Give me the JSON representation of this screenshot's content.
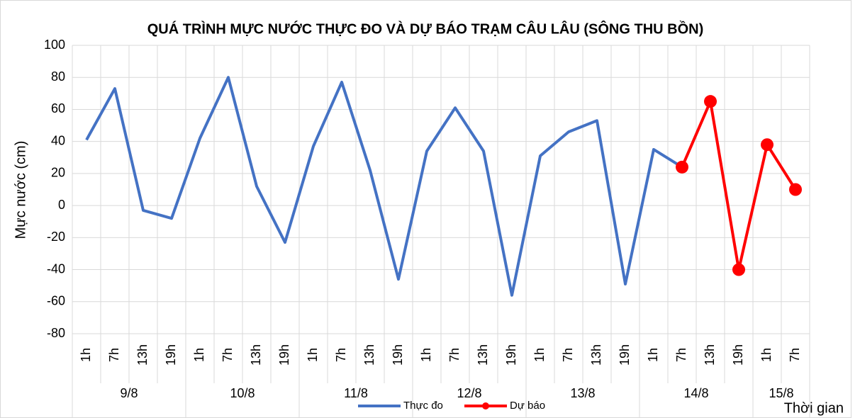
{
  "chart_data": {
    "type": "line",
    "title": "QUÁ TRÌNH MỰC NƯỚC THỰC ĐO VÀ DỰ BÁO TRẠM CÂU LÂU (SÔNG THU BỒN)",
    "y_label": "Mực nước (cm)",
    "x_label": "Thời gian",
    "category_groups": [
      {
        "name": "9/8",
        "categories": [
          "1h",
          "7h",
          "13h",
          "19h"
        ]
      },
      {
        "name": "10/8",
        "categories": [
          "1h",
          "7h",
          "13h",
          "19h"
        ]
      },
      {
        "name": "11/8",
        "categories": [
          "1h",
          "7h",
          "13h",
          "19h"
        ]
      },
      {
        "name": "12/8",
        "categories": [
          "1h",
          "7h",
          "13h",
          "19h"
        ]
      },
      {
        "name": "13/8",
        "categories": [
          "1h",
          "7h",
          "13h",
          "19h"
        ]
      },
      {
        "name": "14/8",
        "categories": [
          "1h",
          "7h",
          "13h",
          "19h"
        ]
      },
      {
        "name": "15/8",
        "categories": [
          "1h",
          "7h"
        ]
      }
    ],
    "series": [
      {
        "name": "Thực đo",
        "color": "#4472c4",
        "markers": false,
        "values": [
          41,
          73,
          -3,
          -8,
          42,
          80,
          12,
          -23,
          37,
          77,
          22,
          -46,
          34,
          61,
          34,
          -56,
          31,
          46,
          53,
          -49,
          35,
          24,
          null,
          null,
          null,
          null
        ]
      },
      {
        "name": "Dự báo",
        "color": "#ff0000",
        "markers": true,
        "values": [
          null,
          null,
          null,
          null,
          null,
          null,
          null,
          null,
          null,
          null,
          null,
          null,
          null,
          null,
          null,
          null,
          null,
          null,
          null,
          null,
          null,
          24,
          65,
          -40,
          38,
          10
        ]
      }
    ],
    "ylim": [
      -80,
      100
    ],
    "yticks": [
      -80,
      -60,
      -40,
      -20,
      0,
      20,
      40,
      60,
      80,
      100
    ],
    "grid": true,
    "legend": "bottom"
  }
}
